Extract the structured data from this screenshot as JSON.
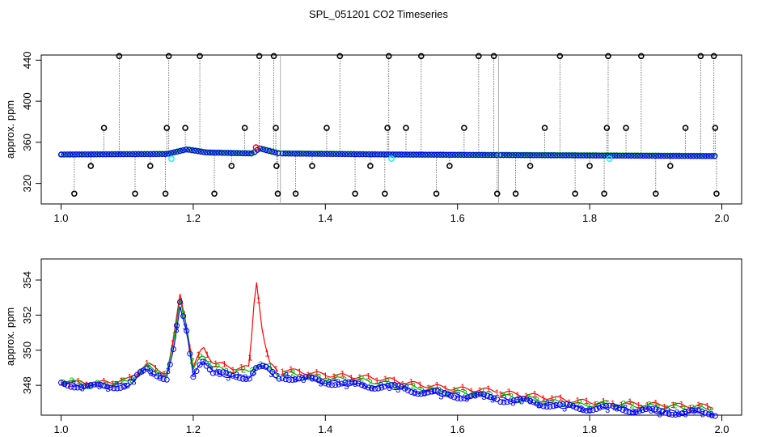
{
  "title": "SPL_051201  CO2 Timeseries",
  "chart_data": [
    {
      "type": "scatter",
      "title": "SPL_051201  CO2 Timeseries",
      "ylabel": "approx. ppm",
      "xlim": [
        0.97,
        2.03
      ],
      "ylim": [
        300,
        445
      ],
      "xticks": [
        "1.0",
        "1.2",
        "1.4",
        "1.6",
        "1.8",
        "2.0"
      ],
      "xtick_values": [
        1.0,
        1.2,
        1.4,
        1.6,
        1.8,
        2.0
      ],
      "yticks": [
        "320",
        "360",
        "400",
        "440"
      ],
      "ytick_values": [
        320,
        360,
        400,
        440
      ],
      "grid": false,
      "baseline_segments": [
        {
          "x": [
            1.0,
            1.16,
            1.19,
            1.22,
            1.29,
            1.3,
            1.33
          ],
          "y": [
            348,
            348.5,
            353,
            350,
            349,
            354,
            349
          ]
        },
        {
          "x": [
            1.335,
            1.5,
            1.66
          ],
          "y": [
            349,
            348,
            347.5
          ]
        },
        {
          "x": [
            1.665,
            1.83,
            1.99
          ],
          "y": [
            347.5,
            347,
            346.5
          ]
        }
      ],
      "outlier_points": {
        "x": [
          1.02,
          1.045,
          1.065,
          1.088,
          1.112,
          1.135,
          1.158,
          1.16,
          1.163,
          1.188,
          1.21,
          1.232,
          1.258,
          1.278,
          1.3,
          1.322,
          1.325,
          1.326,
          1.328,
          1.355,
          1.38,
          1.402,
          1.422,
          1.445,
          1.468,
          1.49,
          1.494,
          1.496,
          1.522,
          1.545,
          1.568,
          1.588,
          1.61,
          1.632,
          1.655,
          1.66,
          1.688,
          1.71,
          1.732,
          1.755,
          1.778,
          1.8,
          1.822,
          1.826,
          1.828,
          1.855,
          1.878,
          1.9,
          1.922,
          1.945,
          1.968,
          1.988,
          1.99,
          1.992
        ],
        "y": [
          310,
          337,
          374,
          444,
          310,
          337,
          310,
          374,
          444,
          374,
          444,
          310,
          337,
          374,
          444,
          444,
          374,
          337,
          310,
          310,
          337,
          374,
          444,
          310,
          337,
          310,
          374,
          444,
          374,
          444,
          310,
          337,
          374,
          444,
          444,
          310,
          310,
          337,
          374,
          444,
          310,
          337,
          310,
          374,
          444,
          374,
          444,
          310,
          337,
          374,
          444,
          444,
          374,
          310
        ],
        "color": "#000000"
      },
      "series_colors": {
        "blue": "#0000ff",
        "green": "#00b000",
        "red": "#ff0000",
        "cyan": "#00ffff",
        "black": "#000000"
      },
      "highlight_points": {
        "x": [
          1.167,
          1.5,
          1.83,
          1.295
        ],
        "y": [
          344,
          344,
          344,
          355
        ],
        "colors": [
          "#00ffff",
          "#00ffff",
          "#00ffff",
          "#ff0000"
        ]
      }
    },
    {
      "type": "line",
      "ylabel": "approx. ppm",
      "xlim": [
        0.97,
        2.03
      ],
      "ylim": [
        346.3,
        355.2
      ],
      "xticks": [
        "1.0",
        "1.2",
        "1.4",
        "1.6",
        "1.8",
        "2.0"
      ],
      "xtick_values": [
        1.0,
        1.2,
        1.4,
        1.6,
        1.8,
        2.0
      ],
      "yticks": [
        "348",
        "350",
        "352",
        "354"
      ],
      "ytick_values": [
        348,
        350,
        352,
        354
      ],
      "grid": false,
      "series": [
        {
          "label_char": "1",
          "color": "#ff0000",
          "x": [
            1.0,
            1.05,
            1.1,
            1.13,
            1.16,
            1.17,
            1.18,
            1.19,
            1.2,
            1.21,
            1.215,
            1.23,
            1.26,
            1.285,
            1.295,
            1.305,
            1.315,
            1.33,
            1.335,
            1.4,
            1.45,
            1.5,
            1.55,
            1.6,
            1.66,
            1.665,
            1.72,
            1.78,
            1.83,
            1.835,
            1.9,
            1.99
          ],
          "y": [
            348.2,
            348.1,
            348.3,
            349.2,
            348.7,
            350.5,
            353.2,
            351.5,
            349.0,
            349.8,
            350.2,
            349.3,
            349.0,
            349.0,
            354.3,
            351.0,
            349.2,
            348.8,
            348.9,
            348.6,
            348.5,
            348.3,
            348.0,
            347.8,
            347.7,
            347.6,
            347.4,
            347.1,
            347.0,
            347.0,
            346.9,
            346.8
          ]
        },
        {
          "label_char": "2",
          "color": "#00b000",
          "x": [
            1.0,
            1.05,
            1.1,
            1.13,
            1.16,
            1.17,
            1.18,
            1.19,
            1.2,
            1.21,
            1.215,
            1.23,
            1.26,
            1.285,
            1.295,
            1.305,
            1.315,
            1.33,
            1.335,
            1.4,
            1.45,
            1.5,
            1.55,
            1.6,
            1.66,
            1.665,
            1.72,
            1.78,
            1.83,
            1.835,
            1.9,
            1.99
          ],
          "y": [
            348.3,
            348.0,
            348.2,
            349.1,
            348.6,
            350.3,
            353.0,
            351.4,
            348.8,
            349.6,
            349.8,
            349.0,
            348.8,
            348.8,
            349.2,
            349.2,
            349.0,
            348.6,
            348.7,
            348.4,
            348.3,
            348.1,
            347.8,
            347.6,
            347.5,
            347.4,
            347.2,
            346.9,
            346.9,
            346.9,
            346.8,
            346.7
          ]
        },
        {
          "label_char": "3",
          "color": "#0000ff",
          "x": [
            1.0,
            1.05,
            1.1,
            1.13,
            1.16,
            1.17,
            1.18,
            1.19,
            1.2,
            1.21,
            1.215,
            1.23,
            1.26,
            1.285,
            1.295,
            1.305,
            1.315,
            1.33,
            1.335,
            1.4,
            1.45,
            1.5,
            1.55,
            1.6,
            1.66,
            1.665,
            1.72,
            1.78,
            1.83,
            1.835,
            1.9,
            1.99
          ],
          "y": [
            348.1,
            347.9,
            348.0,
            348.9,
            348.4,
            350.0,
            352.6,
            351.0,
            348.5,
            349.3,
            349.5,
            348.7,
            348.5,
            348.5,
            349.0,
            349.0,
            348.8,
            348.4,
            348.5,
            348.2,
            348.0,
            347.9,
            347.6,
            347.4,
            347.3,
            347.2,
            347.0,
            346.7,
            346.7,
            346.7,
            346.5,
            346.4
          ]
        }
      ],
      "circle_color": "#0000ff"
    }
  ]
}
